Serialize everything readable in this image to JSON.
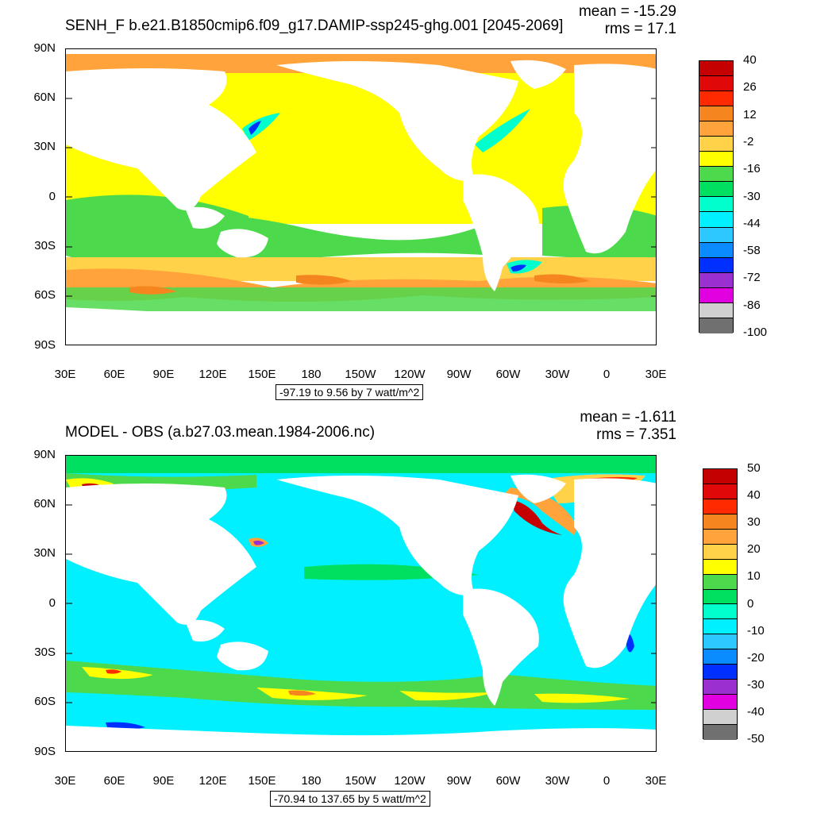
{
  "panels": [
    {
      "title": "SENH_F b.e21.B1850cmip6.f09_g17.DAMIP-ssp245-ghg.001 [2045-2069]",
      "mean_label": "mean = -15.29",
      "rms_label": "rms = 17.1",
      "range_label": "-97.19 to 9.56 by 7 watt/m^2",
      "colorbar": {
        "labels": [
          "40",
          "26",
          "12",
          "-2",
          "-16",
          "-30",
          "-44",
          "-58",
          "-72",
          "-86",
          "-100"
        ],
        "colors": [
          "#c40000",
          "#e00808",
          "#ff2a00",
          "#f5861f",
          "#ffa33a",
          "#ffd24a",
          "#ffff00",
          "#4cd94c",
          "#00e060",
          "#00ffcc",
          "#00f0ff",
          "#2cc8ff",
          "#0a8cff",
          "#0030ff",
          "#9b30d0",
          "#e000e0",
          "#d0d0d0",
          "#707070"
        ]
      }
    },
    {
      "title": "MODEL - OBS (a.b27.03.mean.1984-2006.nc)",
      "mean_label": "mean = -1.611",
      "rms_label": "rms = 7.351",
      "range_label": "-70.94 to 137.65 by 5 watt/m^2",
      "colorbar": {
        "labels": [
          "50",
          "40",
          "30",
          "20",
          "10",
          "0",
          "-10",
          "-20",
          "-30",
          "-40",
          "-50"
        ],
        "colors": [
          "#c40000",
          "#e00808",
          "#ff2a00",
          "#f5861f",
          "#ffa33a",
          "#ffd24a",
          "#ffff00",
          "#4cd94c",
          "#00e060",
          "#00ffcc",
          "#00f0ff",
          "#2cc8ff",
          "#0a8cff",
          "#0030ff",
          "#9b30d0",
          "#e000e0",
          "#d0d0d0",
          "#707070"
        ]
      }
    }
  ],
  "lat_ticks": [
    "90N",
    "60N",
    "30N",
    "0",
    "30S",
    "60S",
    "90S"
  ],
  "lon_ticks": [
    "30E",
    "60E",
    "90E",
    "120E",
    "150E",
    "180",
    "150W",
    "120W",
    "90W",
    "60W",
    "30W",
    "0",
    "30E"
  ],
  "colors": {
    "land": "#ffffff",
    "top_base": "#ffff00",
    "bottom_base": "#00f0ff"
  }
}
